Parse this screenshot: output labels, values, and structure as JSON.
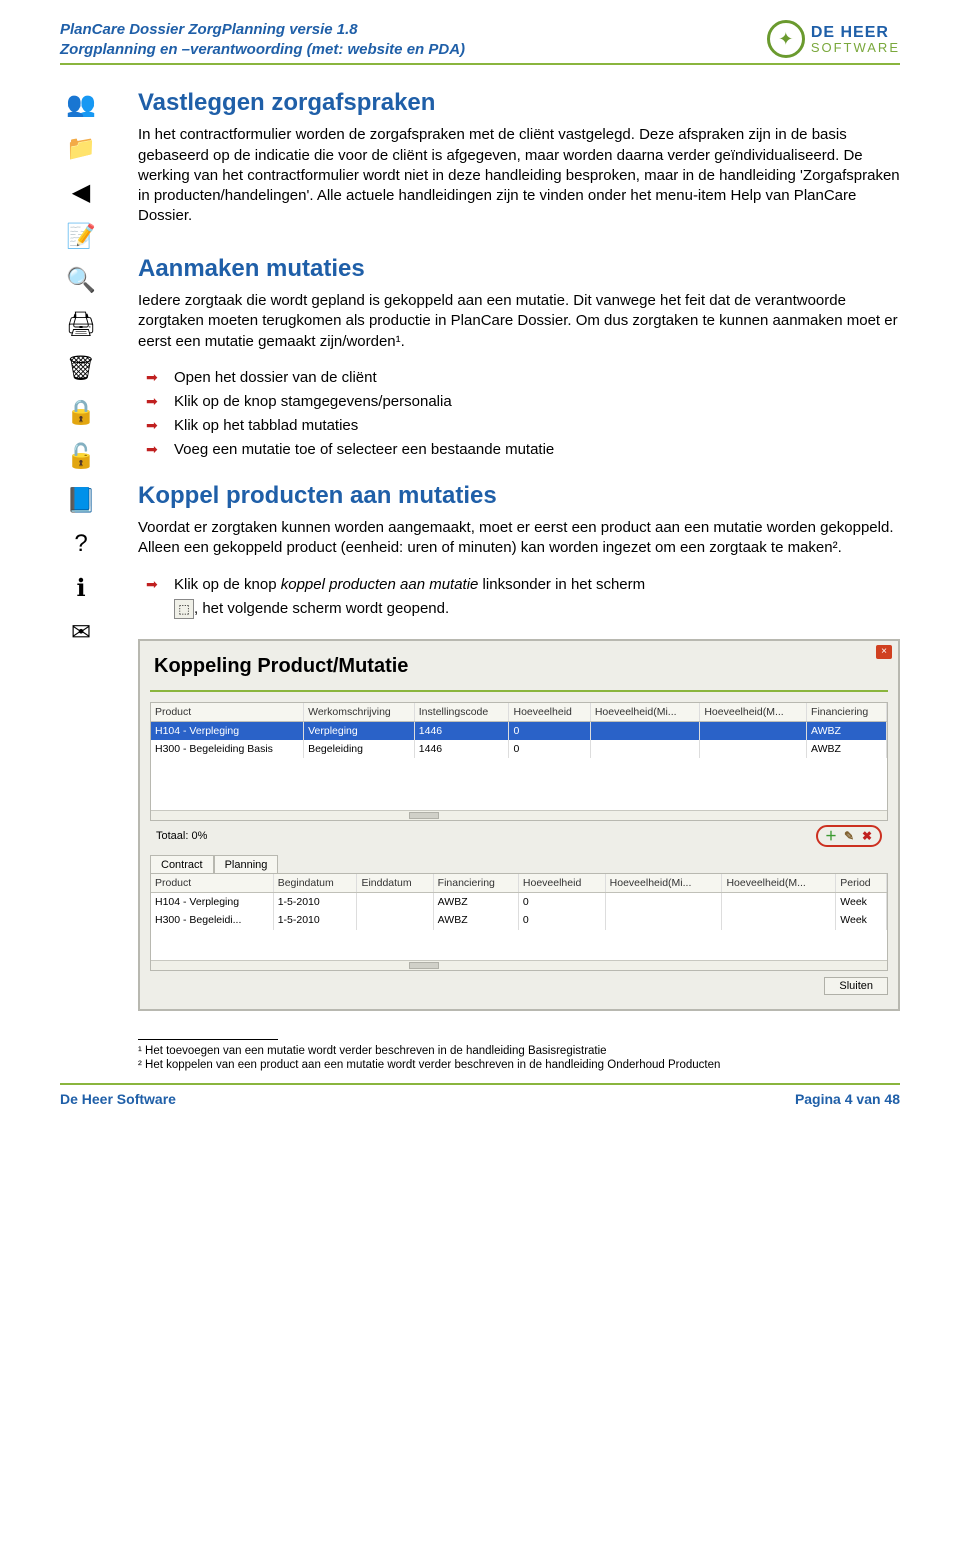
{
  "header": {
    "line1": "PlanCare Dossier ZorgPlanning versie 1.8",
    "line2": "Zorgplanning en –verantwoording (met: website en PDA)",
    "logo_l1": "DE HEER",
    "logo_l2": "SOFTWARE"
  },
  "sections": {
    "s1_title": "Vastleggen zorgafspraken",
    "s1_body": "In het contractformulier worden de zorgafspraken met de cliënt vastgelegd. Deze afspraken zijn in de basis gebaseerd op de indicatie die voor de cliënt is afgegeven, maar worden daarna verder geïndividualiseerd. De werking van het contractformulier wordt niet in deze handleiding besproken, maar in de handleiding 'Zorgafspraken in producten/handelingen'. Alle actuele handleidingen zijn te vinden onder het menu-item Help van PlanCare Dossier.",
    "s2_title": "Aanmaken mutaties",
    "s2_body": "Iedere zorgtaak die wordt gepland is gekoppeld aan een mutatie. Dit vanwege het feit dat de verantwoorde zorgtaken moeten terugkomen als productie in PlanCare Dossier. Om dus zorgtaken te kunnen aanmaken moet er eerst een mutatie gemaakt zijn/worden¹.",
    "s2_bullets": [
      "Open het dossier van de cliënt",
      "Klik op de knop stamgegevens/personalia",
      "Klik op het tabblad mutaties",
      "Voeg een mutatie toe of selecteer een bestaande mutatie"
    ],
    "s3_title": "Koppel producten aan mutaties",
    "s3_body": "Voordat er zorgtaken kunnen worden aangemaakt, moet er eerst een product aan een mutatie worden gekoppeld. Alleen een gekoppeld product (eenheid: uren of minuten) kan worden ingezet om een zorgtaak te maken².",
    "s3_bullet_pre": "Klik op de knop ",
    "s3_bullet_em": "koppel producten aan mutatie",
    "s3_bullet_post": " linksonder in het scherm",
    "s3_after_icon": ", het volgende scherm wordt geopend."
  },
  "screenshot": {
    "title": "Koppeling Product/Mutatie",
    "totaal": "Totaal:  0%",
    "tab1": "Contract",
    "tab2": "Planning",
    "close_btn": "Sluiten",
    "table1": {
      "headers": [
        "Product",
        "Werkomschrijving",
        "Instellingscode",
        "Hoeveelheid",
        "Hoeveelheid(Mi...",
        "Hoeveelheid(M...",
        "Financiering"
      ],
      "rows": [
        [
          "H104 - Verpleging",
          "Verpleging",
          "1446",
          "0",
          "",
          "",
          "AWBZ"
        ],
        [
          "H300 - Begeleiding Basis",
          "Begeleiding",
          "1446",
          "0",
          "",
          "",
          "AWBZ"
        ]
      ]
    },
    "table2": {
      "headers": [
        "Product",
        "Begindatum",
        "Einddatum",
        "Financiering",
        "Hoeveelheid",
        "Hoeveelheid(Mi...",
        "Hoeveelheid(M...",
        "Period"
      ],
      "rows": [
        [
          "H104 - Verpleging",
          "1-5-2010",
          "",
          "AWBZ",
          "0",
          "",
          "",
          "Week"
        ],
        [
          "H300 - Begeleidi...",
          "1-5-2010",
          "",
          "AWBZ",
          "0",
          "",
          "",
          "Week"
        ]
      ]
    }
  },
  "footnotes": {
    "f1": "¹ Het toevoegen van een mutatie wordt verder beschreven in de handleiding Basisregistratie",
    "f2": "² Het koppelen van een product aan een mutatie wordt verder beschreven in de handleiding Onderhoud Producten"
  },
  "footer": {
    "left": "De Heer Software",
    "right": "Pagina 4 van 48"
  },
  "sidebar_icons": [
    {
      "name": "users-icon",
      "glyph": "👥",
      "bg": "#f0c030"
    },
    {
      "name": "folder-icon",
      "glyph": "📁",
      "bg": "#f0d060"
    },
    {
      "name": "back-arrow-icon",
      "glyph": "◀",
      "bg": "#5aa0e0"
    },
    {
      "name": "note-add-icon",
      "glyph": "📝",
      "bg": "#e8e070"
    },
    {
      "name": "search-icon",
      "glyph": "🔍",
      "bg": "#d0e8f0"
    },
    {
      "name": "print-icon",
      "glyph": "🖨",
      "bg": "#c8d0d8"
    },
    {
      "name": "delete-folder-icon",
      "glyph": "🗑",
      "bg": "#d05050"
    },
    {
      "name": "lock-icon",
      "glyph": "🔒",
      "bg": "#f0c030"
    },
    {
      "name": "unlock-icon",
      "glyph": "🔓",
      "bg": "#f0c030"
    },
    {
      "name": "book-icon",
      "glyph": "📘",
      "bg": "#4070c0"
    },
    {
      "name": "help-icon",
      "glyph": "?",
      "bg": "#50c090"
    },
    {
      "name": "info-icon",
      "glyph": "ℹ",
      "bg": "#50a0e0"
    },
    {
      "name": "mail-icon",
      "glyph": "✉",
      "bg": "#e8e8d8"
    }
  ]
}
